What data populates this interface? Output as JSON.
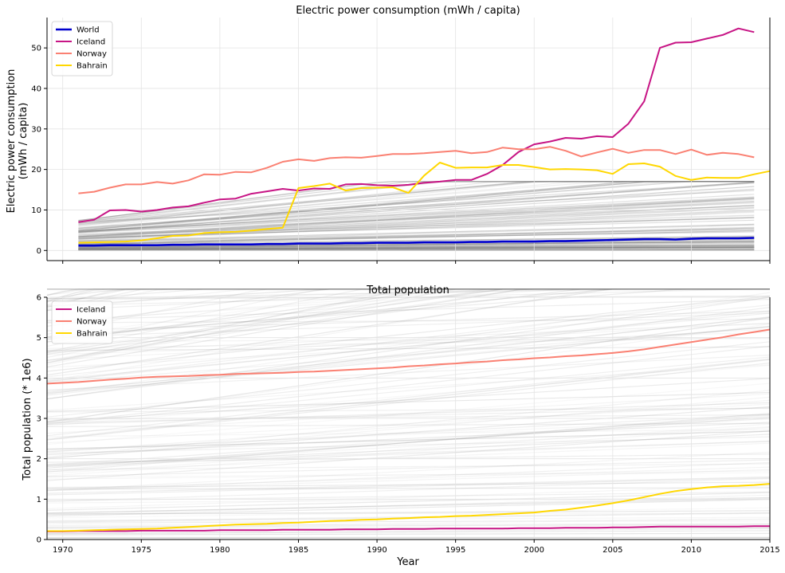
{
  "chart_data": [
    {
      "type": "line",
      "title": "Electric power consumption (mWh / capita)",
      "ylabel_lines": [
        "Electric power consumption",
        "(mWh / capita)"
      ],
      "xlabel": "",
      "xlim": [
        1969,
        2015
      ],
      "ylim": [
        -2.5,
        57.5
      ],
      "yticks": [
        0,
        10,
        20,
        30,
        40,
        50
      ],
      "xticks": [
        1970,
        1975,
        1980,
        1985,
        1990,
        1995,
        2000,
        2005,
        2010,
        2015
      ],
      "show_xtick_labels": false,
      "grid": true,
      "legend": "top-left",
      "background_series": "many grey lines, one per country",
      "series": [
        {
          "name": "World",
          "color": "#0000cd",
          "x_start": 1971,
          "values": [
            1.2,
            1.2,
            1.3,
            1.3,
            1.3,
            1.3,
            1.4,
            1.4,
            1.5,
            1.5,
            1.5,
            1.5,
            1.6,
            1.6,
            1.7,
            1.7,
            1.7,
            1.8,
            1.8,
            1.9,
            1.9,
            1.9,
            2.0,
            2.0,
            2.0,
            2.1,
            2.1,
            2.2,
            2.2,
            2.2,
            2.3,
            2.3,
            2.4,
            2.5,
            2.6,
            2.7,
            2.8,
            2.8,
            2.7,
            2.9,
            3.0,
            3.0,
            3.0,
            3.1
          ]
        },
        {
          "name": "Iceland",
          "color": "#c71585",
          "x_start": 1971,
          "values": [
            7.0,
            7.6,
            9.9,
            10.0,
            9.6,
            10.0,
            10.6,
            10.9,
            11.8,
            12.6,
            12.8,
            14.0,
            14.6,
            15.2,
            14.8,
            15.3,
            15.2,
            16.3,
            16.4,
            16.1,
            16.0,
            16.2,
            16.7,
            17.0,
            17.4,
            17.4,
            18.9,
            21.1,
            24.3,
            26.2,
            26.9,
            27.8,
            27.6,
            28.2,
            28.0,
            31.3,
            36.8,
            50.0,
            51.3,
            51.4,
            52.3,
            53.2,
            54.8,
            53.9
          ]
        },
        {
          "name": "Norway",
          "color": "#fa8072",
          "x_start": 1971,
          "values": [
            14.1,
            14.5,
            15.5,
            16.3,
            16.3,
            16.9,
            16.5,
            17.3,
            18.8,
            18.7,
            19.4,
            19.3,
            20.4,
            21.9,
            22.5,
            22.1,
            22.8,
            23.0,
            22.9,
            23.3,
            23.8,
            23.8,
            24.0,
            24.3,
            24.6,
            24.0,
            24.3,
            25.4,
            25.0,
            25.0,
            25.6,
            24.6,
            23.2,
            24.2,
            25.1,
            24.1,
            24.8,
            24.8,
            23.8,
            24.9,
            23.6,
            24.1,
            23.8,
            23.0
          ]
        },
        {
          "name": "Bahrain",
          "color": "#ffd700",
          "x_start": 1971,
          "values": [
            1.9,
            2.0,
            2.1,
            2.2,
            2.5,
            3.0,
            3.6,
            3.7,
            4.3,
            4.5,
            4.6,
            4.9,
            5.3,
            5.6,
            15.4,
            15.9,
            16.5,
            14.8,
            15.4,
            15.5,
            15.6,
            14.2,
            18.5,
            21.7,
            20.4,
            20.5,
            20.5,
            21.1,
            21.1,
            20.6,
            20.0,
            20.1,
            20.0,
            19.8,
            18.9,
            21.3,
            21.5,
            20.7,
            18.4,
            17.4,
            18.0,
            17.9,
            17.9,
            18.8,
            19.6
          ]
        }
      ]
    },
    {
      "type": "line",
      "title": "Total population",
      "ylabel_lines": [
        "Total population (* 1e6)"
      ],
      "xlabel": "Year",
      "xlim": [
        1969,
        2015
      ],
      "ylim": [
        0,
        6
      ],
      "yticks": [
        0,
        1,
        2,
        3,
        4,
        5,
        6
      ],
      "xticks": [
        1970,
        1975,
        1980,
        1985,
        1990,
        1995,
        2000,
        2005,
        2010,
        2015
      ],
      "show_xtick_labels": true,
      "grid": true,
      "legend": "top-left",
      "background_series": "many grey lines, one per country",
      "series": [
        {
          "name": "Iceland",
          "color": "#c71585",
          "x_start": 1969,
          "values": [
            0.2,
            0.2,
            0.21,
            0.21,
            0.21,
            0.21,
            0.22,
            0.22,
            0.22,
            0.22,
            0.22,
            0.23,
            0.23,
            0.23,
            0.23,
            0.24,
            0.24,
            0.24,
            0.24,
            0.25,
            0.25,
            0.25,
            0.26,
            0.26,
            0.26,
            0.27,
            0.27,
            0.27,
            0.27,
            0.27,
            0.28,
            0.28,
            0.28,
            0.29,
            0.29,
            0.29,
            0.3,
            0.3,
            0.31,
            0.32,
            0.32,
            0.32,
            0.32,
            0.32,
            0.32,
            0.33,
            0.33
          ]
        },
        {
          "name": "Norway",
          "color": "#fa8072",
          "x_start": 1969,
          "values": [
            3.86,
            3.88,
            3.9,
            3.93,
            3.96,
            3.98,
            4.01,
            4.03,
            4.04,
            4.05,
            4.07,
            4.08,
            4.1,
            4.11,
            4.12,
            4.13,
            4.15,
            4.16,
            4.18,
            4.2,
            4.22,
            4.24,
            4.26,
            4.29,
            4.31,
            4.34,
            4.36,
            4.39,
            4.41,
            4.44,
            4.46,
            4.49,
            4.51,
            4.54,
            4.56,
            4.59,
            4.62,
            4.66,
            4.71,
            4.77,
            4.83,
            4.89,
            4.95,
            5.01,
            5.08,
            5.14,
            5.2
          ]
        },
        {
          "name": "Bahrain",
          "color": "#ffd700",
          "x_start": 1969,
          "values": [
            0.21,
            0.21,
            0.22,
            0.23,
            0.24,
            0.25,
            0.26,
            0.27,
            0.29,
            0.31,
            0.33,
            0.35,
            0.37,
            0.38,
            0.39,
            0.41,
            0.42,
            0.44,
            0.46,
            0.47,
            0.49,
            0.5,
            0.52,
            0.53,
            0.55,
            0.56,
            0.58,
            0.59,
            0.61,
            0.63,
            0.65,
            0.67,
            0.71,
            0.74,
            0.79,
            0.84,
            0.9,
            0.97,
            1.05,
            1.13,
            1.2,
            1.25,
            1.29,
            1.32,
            1.33,
            1.35,
            1.38
          ]
        }
      ]
    }
  ],
  "axes_texts": {
    "top_title": "Electric power consumption (mWh / capita)",
    "top_ylabel_1": "Electric power consumption",
    "top_ylabel_2": "(mWh / capita)",
    "bottom_title": "Total population",
    "bottom_ylabel": "Total population (* 1e6)",
    "xlabel": "Year"
  }
}
